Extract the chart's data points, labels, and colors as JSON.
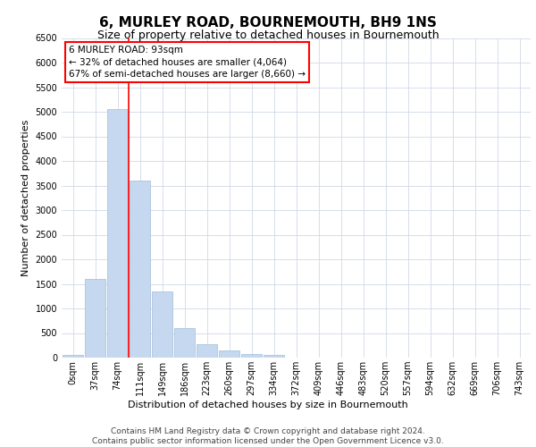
{
  "title": "6, MURLEY ROAD, BOURNEMOUTH, BH9 1NS",
  "subtitle": "Size of property relative to detached houses in Bournemouth",
  "xlabel": "Distribution of detached houses by size in Bournemouth",
  "ylabel": "Number of detached properties",
  "footer_line1": "Contains HM Land Registry data © Crown copyright and database right 2024.",
  "footer_line2": "Contains public sector information licensed under the Open Government Licence v3.0.",
  "categories": [
    "0sqm",
    "37sqm",
    "74sqm",
    "111sqm",
    "149sqm",
    "186sqm",
    "223sqm",
    "260sqm",
    "297sqm",
    "334sqm",
    "372sqm",
    "409sqm",
    "446sqm",
    "483sqm",
    "520sqm",
    "557sqm",
    "594sqm",
    "632sqm",
    "669sqm",
    "706sqm",
    "743sqm"
  ],
  "values": [
    50,
    1600,
    5050,
    3600,
    1350,
    600,
    275,
    150,
    75,
    50,
    0,
    0,
    0,
    0,
    0,
    0,
    0,
    0,
    0,
    0,
    0
  ],
  "bar_color": "#c5d8f0",
  "bar_edge_color": "#a0bcd8",
  "grid_color": "#d0d8e8",
  "annotation_text_line1": "6 MURLEY ROAD: 93sqm",
  "annotation_text_line2": "← 32% of detached houses are smaller (4,064)",
  "annotation_text_line3": "67% of semi-detached houses are larger (8,660) →",
  "vline_x": 2.5,
  "ylim": [
    0,
    6500
  ],
  "yticks": [
    0,
    500,
    1000,
    1500,
    2000,
    2500,
    3000,
    3500,
    4000,
    4500,
    5000,
    5500,
    6000,
    6500
  ],
  "bg_color": "#ffffff",
  "title_fontsize": 11,
  "subtitle_fontsize": 9,
  "tick_fontsize": 7,
  "ylabel_fontsize": 8,
  "xlabel_fontsize": 8,
  "annotation_fontsize": 7.5,
  "footer_fontsize": 6.5
}
